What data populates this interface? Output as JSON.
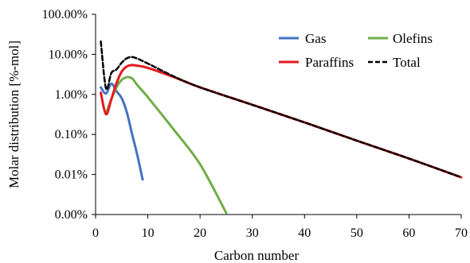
{
  "chart_data": {
    "type": "line",
    "title": "",
    "xlabel": "Carbon number",
    "ylabel": "Molar distribution [%-mol]",
    "xlim": [
      0,
      70
    ],
    "ylim_percent": [
      0.001,
      100
    ],
    "y_scale": "log",
    "x_ticks": [
      "0",
      "10",
      "20",
      "30",
      "40",
      "50",
      "60",
      "70"
    ],
    "y_ticks": [
      "0.00%",
      "0.01%",
      "0.10%",
      "1.00%",
      "10.00%",
      "100.00%"
    ],
    "y_tick_values": [
      0.001,
      0.01,
      0.1,
      1,
      10,
      100
    ],
    "legend_position": "top-right",
    "grid": false,
    "series": [
      {
        "name": "Gas",
        "color": "#4472c4",
        "dash": "solid",
        "points": [
          [
            1,
            1.5
          ],
          [
            2,
            1.05
          ],
          [
            3,
            1.85
          ],
          [
            4,
            1.2
          ],
          [
            5,
            0.8
          ],
          [
            6,
            0.35
          ],
          [
            7,
            0.1
          ],
          [
            8,
            0.03
          ],
          [
            9,
            0.0075
          ]
        ]
      },
      {
        "name": "Olefins",
        "color": "#70ad47",
        "dash": "solid",
        "points": [
          [
            2,
            0.33
          ],
          [
            3,
            0.75
          ],
          [
            4,
            1.5
          ],
          [
            5,
            2.3
          ],
          [
            6,
            2.7
          ],
          [
            7,
            2.5
          ],
          [
            8,
            1.7
          ],
          [
            10,
            0.85
          ],
          [
            15,
            0.13
          ],
          [
            20,
            0.018
          ],
          [
            25,
            0.0011
          ]
        ]
      },
      {
        "name": "Paraffins",
        "color": "#e31a1c",
        "dash": "solid",
        "points": [
          [
            1,
            1.1
          ],
          [
            2,
            0.32
          ],
          [
            3,
            0.75
          ],
          [
            4,
            1.9
          ],
          [
            5,
            3.7
          ],
          [
            6,
            5.0
          ],
          [
            7,
            5.4
          ],
          [
            8,
            5.2
          ],
          [
            10,
            4.6
          ],
          [
            15,
            2.7
          ],
          [
            20,
            1.5
          ],
          [
            30,
            0.55
          ],
          [
            40,
            0.2
          ],
          [
            50,
            0.07
          ],
          [
            60,
            0.025
          ],
          [
            70,
            0.0085
          ]
        ]
      },
      {
        "name": "Total",
        "color": "#000000",
        "dash": "dashed",
        "points": [
          [
            1,
            21
          ],
          [
            2,
            1.4
          ],
          [
            3,
            3.4
          ],
          [
            4,
            4.2
          ],
          [
            5,
            6.2
          ],
          [
            6,
            8.0
          ],
          [
            7,
            8.6
          ],
          [
            8,
            7.8
          ],
          [
            10,
            5.9
          ],
          [
            15,
            2.8
          ],
          [
            20,
            1.5
          ],
          [
            30,
            0.55
          ],
          [
            40,
            0.2
          ],
          [
            50,
            0.07
          ],
          [
            60,
            0.025
          ],
          [
            70,
            0.0085
          ]
        ]
      }
    ]
  }
}
